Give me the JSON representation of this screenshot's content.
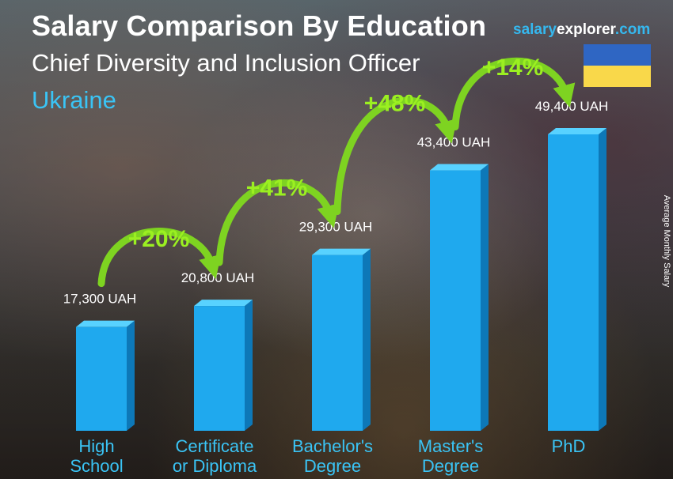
{
  "header": {
    "title": "Salary Comparison By Education",
    "subtitle": "Chief Diversity and Inclusion Officer",
    "country": "Ukraine"
  },
  "brand": {
    "part1": "salary",
    "part2": "explorer",
    "part3": ".com"
  },
  "flag": {
    "top_color": "#2f66c3",
    "bottom_color": "#f9d84a"
  },
  "colors": {
    "bar_front": "#1fa9ee",
    "bar_top": "#58d2ff",
    "bar_side": "#0d78b8",
    "arrow": "#7ed321",
    "category": "#3ac4f5"
  },
  "chart_data": {
    "type": "bar",
    "title": "Salary Comparison By Education",
    "subtitle": "Chief Diversity and Inclusion Officer",
    "ylabel": "Average Monthly Salary",
    "categories": [
      [
        "High",
        "School"
      ],
      [
        "Certificate",
        "or Diploma"
      ],
      [
        "Bachelor's",
        "Degree"
      ],
      [
        "Master's",
        "Degree"
      ],
      [
        "PhD"
      ]
    ],
    "values": [
      17300,
      20800,
      29300,
      43400,
      49400
    ],
    "value_labels": [
      "17,300 UAH",
      "20,800 UAH",
      "29,300 UAH",
      "43,400 UAH",
      "49,400 UAH"
    ],
    "unit": "UAH",
    "increases": [
      "+20%",
      "+41%",
      "+48%",
      "+14%"
    ],
    "ylim": [
      0,
      60000
    ]
  }
}
